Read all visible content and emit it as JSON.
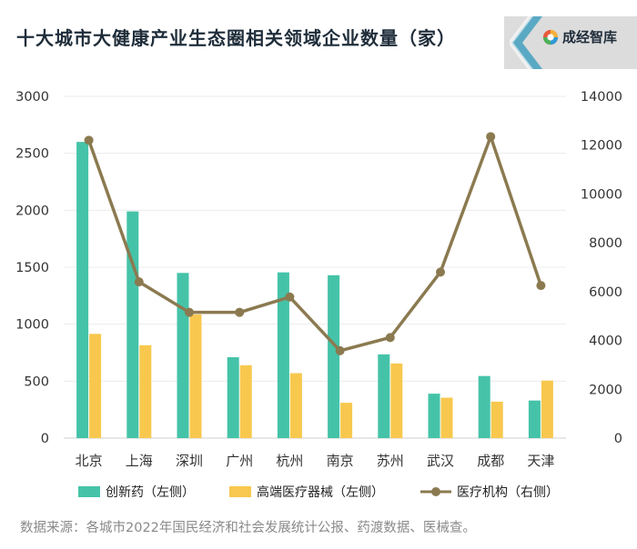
{
  "title": "十大城市大健康产业生态圈相关领域企业数量（家）",
  "brand": {
    "name": "成经智库",
    "logo_icon": "cheng-jing-logo-icon"
  },
  "source": "数据来源：各城市2022年国民经济和社会发展统计公报、药渡数据、医械查。",
  "chart_data": {
    "type": "bar+line",
    "categories": [
      "北京",
      "上海",
      "深圳",
      "广州",
      "杭州",
      "南京",
      "苏州",
      "武汉",
      "成都",
      "天津"
    ],
    "series": [
      {
        "name": "创新药（左侧）",
        "type": "bar",
        "axis": "left",
        "color": "#45c3a8",
        "values": [
          2600,
          1990,
          1450,
          710,
          1455,
          1430,
          735,
          390,
          545,
          330
        ]
      },
      {
        "name": "高端医疗器械（左侧）",
        "type": "bar",
        "axis": "left",
        "color": "#f8c84e",
        "values": [
          915,
          815,
          1085,
          640,
          570,
          310,
          655,
          355,
          320,
          505
        ]
      },
      {
        "name": "医疗机构（右侧）",
        "type": "line",
        "axis": "right",
        "color": "#8b7a50",
        "values": [
          12200,
          6400,
          5150,
          5150,
          5780,
          3580,
          4120,
          6800,
          12350,
          6250
        ]
      }
    ],
    "left_axis": {
      "min": 0,
      "max": 3000,
      "ticks": [
        0,
        500,
        1000,
        1500,
        2000,
        2500,
        3000
      ]
    },
    "right_axis": {
      "min": 0,
      "max": 14000,
      "ticks": [
        0,
        2000,
        4000,
        6000,
        8000,
        10000,
        12000,
        14000
      ]
    },
    "grid": true,
    "legend_position": "bottom"
  }
}
